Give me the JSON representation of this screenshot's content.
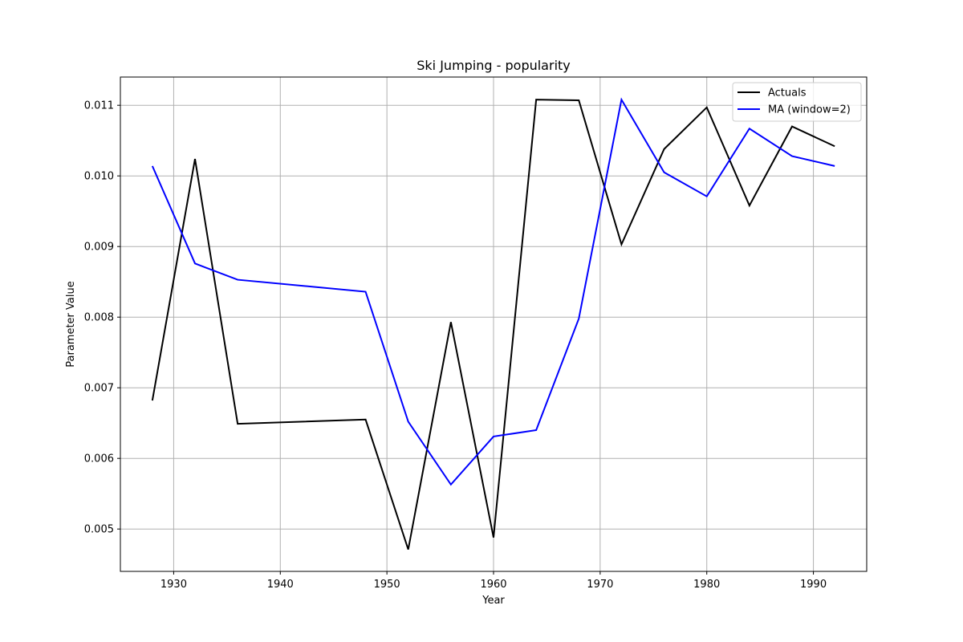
{
  "chart_data": {
    "type": "line",
    "title": "Ski Jumping - popularity",
    "xlabel": "Year",
    "ylabel": "Parameter Value",
    "xlim": [
      1925,
      1995
    ],
    "ylim": [
      0.0044,
      0.0114
    ],
    "xticks": [
      1930,
      1940,
      1950,
      1960,
      1970,
      1980,
      1990
    ],
    "yticks": [
      0.005,
      0.006,
      0.007,
      0.008,
      0.009,
      0.01,
      0.011
    ],
    "ytick_labels": [
      "0.005",
      "0.006",
      "0.007",
      "0.008",
      "0.009",
      "0.010",
      "0.011"
    ],
    "grid": true,
    "legend_position": "top-right",
    "x": [
      1928,
      1932,
      1936,
      1948,
      1952,
      1956,
      1960,
      1964,
      1968,
      1972,
      1976,
      1980,
      1984,
      1988,
      1992
    ],
    "series": [
      {
        "name": "Actuals",
        "color": "#000000",
        "values": [
          0.00682,
          0.01024,
          0.00649,
          0.00655,
          0.00471,
          0.00793,
          0.00488,
          0.01108,
          0.01107,
          0.00903,
          0.01038,
          0.01097,
          0.00958,
          0.0107,
          0.01042
        ]
      },
      {
        "name": "MA (window=2)",
        "color": "#0000ff",
        "values": [
          0.01014,
          0.00876,
          0.00853,
          0.00836,
          0.00652,
          0.00563,
          0.00631,
          0.0064,
          0.00798,
          0.01108,
          0.01005,
          0.00971,
          0.01067,
          0.01028,
          0.01014
        ]
      }
    ]
  }
}
